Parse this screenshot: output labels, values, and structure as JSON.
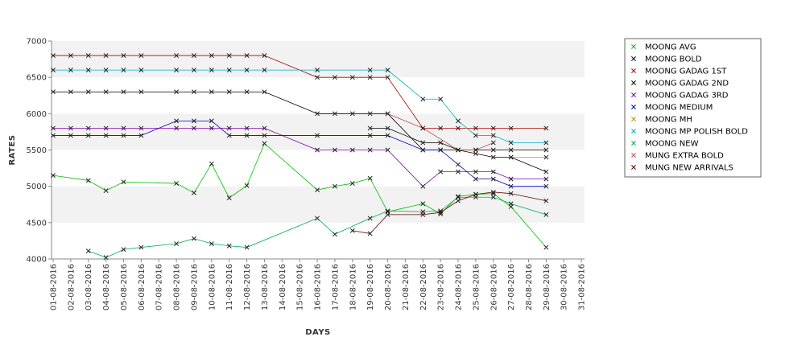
{
  "chart_data": {
    "type": "line",
    "title": "",
    "xlabel": "DAYS",
    "ylabel": "RATES",
    "ylim": [
      4000,
      7000
    ],
    "yticks": [
      4000,
      4500,
      5000,
      5500,
      6000,
      6500,
      7000
    ],
    "grid": "horizontal alternating bands",
    "legend_position": "right",
    "x": [
      "01-08-2016",
      "02-08-2016",
      "03-08-2016",
      "04-08-2016",
      "05-08-2016",
      "06-08-2016",
      "07-08-2016",
      "08-08-2016",
      "09-08-2016",
      "10-08-2016",
      "11-08-2016",
      "12-08-2016",
      "13-08-2016",
      "14-08-2016",
      "15-08-2016",
      "16-08-2016",
      "17-08-2016",
      "18-08-2016",
      "19-08-2016",
      "20-08-2016",
      "21-08-2016",
      "22-08-2016",
      "23-08-2016",
      "24-08-2016",
      "25-08-2016",
      "26-08-2016",
      "27-08-2016",
      "28-08-2016",
      "29-08-2016",
      "30-08-2016",
      "31-08-2016"
    ],
    "series": [
      {
        "name": "MOONG AVG",
        "color": "#00c000",
        "values": [
          5150,
          null,
          5080,
          4940,
          5060,
          null,
          null,
          5040,
          4910,
          5310,
          4840,
          5010,
          5590,
          null,
          null,
          4950,
          5000,
          5040,
          5110,
          4650,
          null,
          4760,
          4620,
          4860,
          4890,
          4900,
          4720,
          null,
          4160,
          null,
          null
        ]
      },
      {
        "name": "MOONG BOLD",
        "color": "#000000",
        "values": [
          null,
          null,
          null,
          null,
          null,
          null,
          null,
          null,
          null,
          null,
          null,
          null,
          null,
          null,
          null,
          null,
          null,
          null,
          5800,
          5800,
          null,
          5600,
          5600,
          5500,
          5450,
          5400,
          5400,
          null,
          5200,
          null,
          null
        ]
      },
      {
        "name": "MOONG GADAG 1ST",
        "color": "#b00000",
        "values": [
          6800,
          6800,
          6800,
          6800,
          6800,
          6800,
          null,
          6800,
          6800,
          6800,
          6800,
          6800,
          6800,
          null,
          null,
          6500,
          6500,
          6500,
          6500,
          6500,
          null,
          5800,
          5800,
          5800,
          5800,
          5800,
          5800,
          null,
          5800,
          null,
          null
        ]
      },
      {
        "name": "MOONG GADAG 2ND",
        "color": "#000000",
        "values": [
          6300,
          6300,
          6300,
          6300,
          6300,
          6300,
          null,
          6300,
          6300,
          6300,
          6300,
          6300,
          6300,
          null,
          null,
          6000,
          6000,
          6000,
          6000,
          6000,
          null,
          5500,
          5500,
          5500,
          5500,
          5500,
          5500,
          null,
          5500,
          null,
          null
        ]
      },
      {
        "name": "MOONG GADAG 3RD",
        "color": "#8000b0",
        "values": [
          5800,
          5800,
          5800,
          5800,
          5800,
          5800,
          null,
          5800,
          5800,
          5800,
          5800,
          5800,
          5800,
          null,
          null,
          5500,
          5500,
          5500,
          5500,
          5500,
          null,
          5000,
          5200,
          5200,
          5200,
          5200,
          5100,
          null,
          5100,
          null,
          null
        ]
      },
      {
        "name": "MOONG MEDIUM",
        "color": "#0000c0",
        "values": [
          5700,
          5700,
          5700,
          5700,
          5700,
          5700,
          null,
          5900,
          5900,
          5900,
          5700,
          5700,
          5700,
          null,
          null,
          5700,
          null,
          null,
          5700,
          5700,
          null,
          5500,
          5500,
          5300,
          5100,
          5100,
          5000,
          null,
          5000,
          null,
          null
        ]
      },
      {
        "name": "MOONG MH",
        "color": "#c09000",
        "values": [
          null,
          null,
          null,
          null,
          null,
          null,
          null,
          null,
          null,
          null,
          null,
          null,
          null,
          null,
          null,
          null,
          null,
          null,
          null,
          null,
          null,
          null,
          null,
          null,
          null,
          null,
          5400,
          null,
          5400,
          null,
          null
        ]
      },
      {
        "name": "MOONG MP POLISH BOLD",
        "color": "#00b0c0",
        "values": [
          6600,
          6600,
          6600,
          6600,
          6600,
          6600,
          null,
          6600,
          6600,
          6600,
          6600,
          6600,
          6600,
          null,
          null,
          6600,
          null,
          null,
          6600,
          6600,
          null,
          6200,
          6200,
          5900,
          5700,
          5700,
          5600,
          null,
          5600,
          null,
          null
        ]
      },
      {
        "name": "MOONG NEW",
        "color": "#00b050",
        "values": [
          null,
          null,
          4110,
          4020,
          4130,
          4160,
          null,
          4210,
          4280,
          4210,
          4180,
          4160,
          null,
          null,
          null,
          4560,
          4340,
          null,
          4560,
          4660,
          null,
          4650,
          4660,
          4850,
          4850,
          4850,
          4760,
          null,
          4610,
          null,
          null
        ]
      },
      {
        "name": "MUNG EXTRA BOLD",
        "color": "#c05050",
        "values": [
          null,
          null,
          null,
          null,
          null,
          null,
          null,
          null,
          null,
          null,
          null,
          null,
          null,
          null,
          null,
          null,
          null,
          null,
          null,
          6000,
          null,
          5800,
          null,
          5500,
          5500,
          5600,
          null,
          null,
          null,
          null,
          null
        ]
      },
      {
        "name": "MUNG NEW ARRIVALS",
        "color": "#600000",
        "values": [
          null,
          null,
          null,
          null,
          null,
          null,
          null,
          null,
          null,
          null,
          null,
          null,
          null,
          null,
          null,
          null,
          null,
          4390,
          4350,
          4610,
          null,
          4610,
          4640,
          4800,
          4890,
          4920,
          4900,
          null,
          4800,
          null,
          null
        ]
      }
    ]
  }
}
